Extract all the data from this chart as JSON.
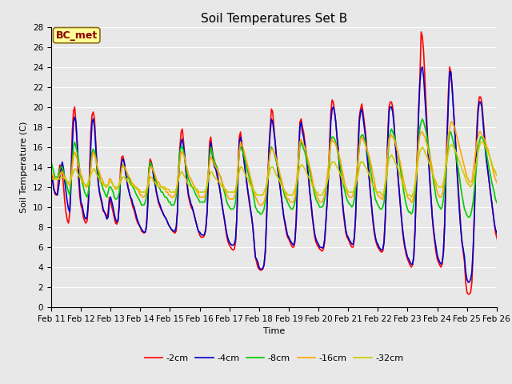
{
  "title": "Soil Temperatures Set B",
  "xlabel": "Time",
  "ylabel": "Soil Temperature (C)",
  "annotation_text": "BC_met",
  "annotation_bg": "#FFFF99",
  "annotation_border": "#8B6914",
  "series_labels": [
    "-2cm",
    "-4cm",
    "-8cm",
    "-16cm",
    "-32cm"
  ],
  "series_colors": [
    "#FF0000",
    "#0000CC",
    "#00CC00",
    "#FFA500",
    "#CCCC00"
  ],
  "ylim": [
    0,
    28
  ],
  "background_color": "#E8E8E8",
  "plot_bg": "#E8E8E8",
  "x_tick_labels": [
    "Feb 11",
    "Feb 12",
    "Feb 13",
    "Feb 14",
    "Feb 15",
    "Feb 16",
    "Feb 17",
    "Feb 18",
    "Feb 19",
    "Feb 20",
    "Feb 21",
    "Feb 22",
    "Feb 23",
    "Feb 24",
    "Feb 25",
    "Feb 26"
  ],
  "title_fontsize": 11,
  "axis_label_fontsize": 8,
  "tick_fontsize": 7.5,
  "legend_fontsize": 8,
  "line_width": 1.2,
  "data_2cm": [
    13.2,
    13.0,
    12.0,
    11.3,
    11.2,
    11.3,
    13.3,
    14.2,
    14.1,
    13.5,
    12.0,
    10.5,
    9.4,
    8.7,
    8.4,
    9.4,
    13.5,
    17.5,
    19.6,
    20.0,
    18.3,
    16.0,
    13.0,
    11.2,
    10.2,
    9.8,
    9.0,
    8.6,
    8.4,
    8.6,
    10.2,
    13.5,
    17.5,
    19.2,
    19.5,
    18.8,
    16.5,
    14.0,
    12.5,
    11.5,
    10.8,
    10.3,
    9.6,
    9.5,
    9.3,
    8.9,
    9.5,
    11.0,
    10.5,
    10.0,
    9.5,
    8.9,
    8.4,
    8.3,
    8.6,
    10.6,
    13.8,
    15.0,
    15.1,
    14.5,
    13.7,
    12.8,
    12.0,
    11.5,
    11.0,
    10.5,
    10.0,
    9.7,
    9.2,
    8.7,
    8.4,
    8.2,
    8.0,
    7.6,
    7.5,
    7.4,
    7.5,
    8.2,
    10.5,
    13.8,
    14.8,
    14.5,
    13.8,
    13.0,
    12.5,
    11.5,
    10.8,
    10.3,
    10.0,
    9.7,
    9.5,
    9.2,
    9.0,
    8.8,
    8.5,
    8.2,
    8.0,
    7.8,
    7.6,
    7.5,
    7.4,
    7.6,
    9.5,
    13.5,
    16.0,
    17.5,
    17.8,
    16.5,
    15.0,
    13.5,
    12.0,
    11.0,
    10.5,
    10.0,
    9.8,
    9.5,
    9.0,
    8.5,
    8.0,
    7.6,
    7.2,
    7.0,
    7.0,
    7.0,
    7.2,
    8.0,
    9.5,
    13.0,
    16.5,
    17.0,
    15.8,
    15.0,
    14.5,
    14.2,
    13.5,
    12.8,
    12.0,
    11.2,
    10.3,
    9.5,
    8.7,
    7.8,
    7.0,
    6.5,
    6.2,
    6.0,
    5.8,
    5.7,
    5.8,
    6.5,
    9.0,
    13.5,
    17.0,
    17.5,
    16.5,
    15.5,
    14.5,
    13.5,
    12.5,
    11.5,
    10.5,
    9.8,
    9.0,
    8.0,
    6.5,
    5.0,
    4.5,
    4.0,
    3.8,
    3.7,
    3.7,
    3.8,
    4.2,
    5.5,
    8.5,
    12.5,
    16.0,
    18.0,
    19.8,
    19.5,
    18.0,
    16.5,
    15.0,
    14.0,
    13.0,
    12.0,
    11.0,
    10.0,
    9.0,
    8.2,
    7.5,
    7.0,
    6.8,
    6.5,
    6.2,
    6.0,
    6.0,
    6.5,
    8.8,
    12.5,
    15.5,
    18.5,
    18.8,
    18.0,
    17.5,
    16.5,
    15.5,
    14.0,
    12.8,
    11.5,
    10.2,
    9.0,
    8.0,
    7.0,
    6.5,
    6.2,
    6.0,
    5.8,
    5.7,
    5.6,
    5.8,
    6.5,
    8.5,
    10.5,
    13.0,
    16.5,
    19.5,
    20.7,
    20.5,
    19.5,
    18.5,
    17.0,
    15.5,
    14.0,
    12.5,
    11.0,
    9.5,
    8.5,
    7.5,
    7.0,
    6.8,
    6.5,
    6.2,
    6.0,
    6.0,
    6.8,
    9.0,
    12.5,
    16.0,
    19.0,
    19.8,
    20.3,
    19.5,
    18.5,
    17.5,
    16.0,
    14.5,
    13.0,
    11.5,
    10.0,
    8.5,
    7.5,
    6.8,
    6.3,
    6.0,
    5.8,
    5.6,
    5.5,
    5.6,
    6.5,
    9.0,
    13.0,
    17.0,
    20.0,
    20.5,
    20.5,
    20.0,
    18.5,
    16.5,
    15.0,
    13.5,
    12.0,
    10.5,
    9.0,
    7.5,
    6.5,
    5.8,
    5.2,
    4.8,
    4.5,
    4.2,
    4.0,
    4.2,
    5.0,
    7.5,
    11.5,
    16.0,
    20.0,
    23.0,
    27.5,
    27.0,
    25.5,
    22.8,
    20.0,
    17.5,
    15.0,
    13.0,
    11.0,
    9.0,
    7.5,
    6.5,
    5.5,
    4.8,
    4.5,
    4.2,
    4.0,
    4.3,
    5.5,
    8.5,
    13.5,
    17.5,
    21.5,
    24.0,
    23.5,
    22.0,
    20.0,
    18.0,
    16.0,
    14.0,
    12.0,
    10.0,
    8.0,
    6.5,
    5.5,
    4.5,
    2.5,
    1.5,
    1.3,
    1.3,
    1.5,
    2.5,
    5.5,
    9.5,
    14.5,
    18.0,
    20.0,
    21.0,
    21.0,
    20.5,
    19.0,
    17.5,
    16.0,
    14.5,
    13.5,
    12.5,
    11.5,
    10.5,
    9.5,
    8.5,
    7.5,
    7.0,
    6.5,
    5.5,
    5.0,
    5.0,
    5.5,
    7.5
  ],
  "data_4cm": [
    13.0,
    12.8,
    11.8,
    11.5,
    11.3,
    11.2,
    12.0,
    13.0,
    14.0,
    14.5,
    13.8,
    12.5,
    11.5,
    10.5,
    9.8,
    9.5,
    12.0,
    16.0,
    18.5,
    19.0,
    18.5,
    16.5,
    14.0,
    12.0,
    10.5,
    10.2,
    9.5,
    9.0,
    8.8,
    9.0,
    10.5,
    13.0,
    16.0,
    18.5,
    18.8,
    18.0,
    16.0,
    14.0,
    12.5,
    11.5,
    11.0,
    10.5,
    9.8,
    9.5,
    9.2,
    8.8,
    9.0,
    10.5,
    11.0,
    10.5,
    10.0,
    9.3,
    8.8,
    8.5,
    8.7,
    10.0,
    13.0,
    14.5,
    14.8,
    14.5,
    13.5,
    12.8,
    12.0,
    11.5,
    11.0,
    10.8,
    10.3,
    10.0,
    9.5,
    9.0,
    8.6,
    8.3,
    8.0,
    7.8,
    7.6,
    7.5,
    7.5,
    8.0,
    10.0,
    13.5,
    14.5,
    14.2,
    13.8,
    12.8,
    12.3,
    11.5,
    11.0,
    10.5,
    10.2,
    9.8,
    9.5,
    9.2,
    9.0,
    8.8,
    8.5,
    8.2,
    8.0,
    7.8,
    7.7,
    7.6,
    7.6,
    8.0,
    9.5,
    13.0,
    15.5,
    16.5,
    16.8,
    16.0,
    15.0,
    13.5,
    12.2,
    11.2,
    10.8,
    10.3,
    10.0,
    9.5,
    9.0,
    8.5,
    8.0,
    7.6,
    7.5,
    7.3,
    7.2,
    7.2,
    7.3,
    7.8,
    9.5,
    12.5,
    15.5,
    16.5,
    15.5,
    14.5,
    14.0,
    13.8,
    13.2,
    12.5,
    12.0,
    11.2,
    10.3,
    9.5,
    8.8,
    8.0,
    7.3,
    6.8,
    6.5,
    6.3,
    6.2,
    6.2,
    6.3,
    6.8,
    8.8,
    13.0,
    16.5,
    17.0,
    16.2,
    15.5,
    14.5,
    13.5,
    12.5,
    11.5,
    10.8,
    9.8,
    9.0,
    8.0,
    6.5,
    5.0,
    4.8,
    4.5,
    4.0,
    3.8,
    3.8,
    3.9,
    4.2,
    5.5,
    8.5,
    12.0,
    15.5,
    17.5,
    18.8,
    18.5,
    17.5,
    16.5,
    15.0,
    13.8,
    13.0,
    12.0,
    11.0,
    10.0,
    9.0,
    8.5,
    7.8,
    7.2,
    7.0,
    6.7,
    6.5,
    6.3,
    6.2,
    6.7,
    8.5,
    12.0,
    15.0,
    18.0,
    18.5,
    17.5,
    17.0,
    16.2,
    15.5,
    14.0,
    13.0,
    11.5,
    10.5,
    9.2,
    8.2,
    7.3,
    6.8,
    6.5,
    6.3,
    6.0,
    6.0,
    5.9,
    6.0,
    6.8,
    8.5,
    10.5,
    12.8,
    15.5,
    18.5,
    19.8,
    20.0,
    19.5,
    18.5,
    17.0,
    15.8,
    14.0,
    12.8,
    11.2,
    9.8,
    8.8,
    7.8,
    7.2,
    7.0,
    6.7,
    6.5,
    6.3,
    6.3,
    7.0,
    9.0,
    12.5,
    15.5,
    18.5,
    19.5,
    19.8,
    19.0,
    18.0,
    17.0,
    15.5,
    14.2,
    12.8,
    11.5,
    10.0,
    8.8,
    7.8,
    7.0,
    6.5,
    6.3,
    6.0,
    5.8,
    5.7,
    5.8,
    6.5,
    8.8,
    12.5,
    16.5,
    19.5,
    20.0,
    20.0,
    19.5,
    18.3,
    16.5,
    15.0,
    13.5,
    12.0,
    10.5,
    9.0,
    7.8,
    6.8,
    6.0,
    5.5,
    5.0,
    4.8,
    4.5,
    4.3,
    4.3,
    5.0,
    7.5,
    11.5,
    15.5,
    19.5,
    22.5,
    23.8,
    24.0,
    23.0,
    21.0,
    19.0,
    16.8,
    14.5,
    12.5,
    10.8,
    9.0,
    7.8,
    6.8,
    6.0,
    5.2,
    4.8,
    4.5,
    4.3,
    4.5,
    5.5,
    8.2,
    13.0,
    17.0,
    20.5,
    23.5,
    23.5,
    22.0,
    20.0,
    18.0,
    16.0,
    13.5,
    11.5,
    9.5,
    7.8,
    6.5,
    5.8,
    5.0,
    3.5,
    2.8,
    2.5,
    2.5,
    2.8,
    3.5,
    5.8,
    9.0,
    13.5,
    17.0,
    19.5,
    20.5,
    20.5,
    20.0,
    18.5,
    17.0,
    15.5,
    14.5,
    13.5,
    12.5,
    11.5,
    10.5,
    9.5,
    8.5,
    7.8,
    7.5,
    7.0,
    6.0,
    5.5,
    5.5,
    5.8,
    7.5
  ],
  "data_8cm": [
    14.5,
    14.0,
    13.5,
    13.0,
    13.0,
    13.0,
    13.2,
    13.8,
    14.0,
    14.0,
    13.5,
    13.0,
    12.5,
    12.0,
    11.5,
    11.2,
    12.5,
    14.5,
    16.0,
    16.5,
    16.0,
    15.5,
    14.8,
    13.8,
    13.0,
    12.5,
    12.0,
    11.5,
    11.2,
    11.0,
    11.5,
    12.5,
    14.0,
    15.5,
    15.8,
    15.5,
    15.0,
    14.0,
    13.5,
    13.0,
    12.5,
    12.2,
    11.8,
    11.5,
    11.2,
    11.0,
    11.5,
    12.0,
    12.0,
    11.8,
    11.5,
    11.0,
    10.8,
    10.8,
    11.0,
    11.5,
    13.0,
    14.0,
    14.2,
    14.0,
    13.8,
    13.5,
    13.0,
    12.8,
    12.5,
    12.2,
    12.0,
    11.8,
    11.5,
    11.2,
    11.0,
    10.8,
    10.5,
    10.2,
    10.2,
    10.2,
    10.5,
    11.0,
    12.0,
    13.8,
    14.5,
    14.2,
    13.8,
    13.5,
    13.0,
    12.5,
    12.2,
    12.0,
    11.8,
    11.5,
    11.5,
    11.2,
    11.0,
    11.0,
    10.8,
    10.5,
    10.5,
    10.2,
    10.2,
    10.2,
    10.5,
    11.0,
    12.0,
    14.0,
    15.5,
    16.0,
    16.0,
    15.5,
    14.8,
    14.0,
    13.2,
    12.8,
    12.5,
    12.2,
    12.0,
    11.8,
    11.5,
    11.2,
    11.0,
    10.8,
    10.5,
    10.5,
    10.5,
    10.5,
    10.5,
    11.0,
    12.0,
    13.5,
    15.0,
    16.0,
    15.5,
    15.0,
    14.5,
    14.2,
    14.0,
    13.5,
    13.2,
    13.0,
    12.5,
    12.0,
    11.5,
    11.0,
    10.5,
    10.2,
    10.0,
    9.8,
    9.8,
    9.8,
    10.0,
    10.5,
    12.0,
    13.8,
    15.5,
    16.0,
    15.8,
    15.5,
    15.0,
    14.5,
    14.0,
    13.5,
    13.0,
    12.5,
    12.0,
    11.5,
    10.8,
    10.0,
    9.8,
    9.5,
    9.5,
    9.3,
    9.3,
    9.5,
    9.8,
    10.5,
    11.5,
    13.0,
    14.5,
    15.5,
    16.0,
    15.8,
    15.5,
    15.0,
    14.5,
    14.0,
    13.5,
    13.0,
    12.5,
    12.0,
    11.5,
    11.0,
    10.8,
    10.5,
    10.2,
    10.0,
    9.8,
    9.8,
    10.0,
    10.5,
    11.5,
    13.0,
    14.5,
    16.0,
    16.5,
    16.2,
    15.8,
    15.5,
    15.0,
    14.5,
    14.0,
    13.5,
    13.0,
    12.3,
    11.8,
    11.2,
    10.8,
    10.5,
    10.3,
    10.0,
    10.0,
    10.0,
    10.2,
    10.8,
    11.5,
    12.5,
    13.5,
    15.0,
    16.5,
    17.0,
    17.0,
    16.8,
    16.5,
    15.8,
    15.2,
    14.5,
    13.8,
    13.0,
    12.3,
    11.8,
    11.2,
    10.8,
    10.5,
    10.3,
    10.2,
    10.0,
    10.2,
    10.8,
    11.8,
    13.0,
    14.5,
    16.0,
    17.0,
    17.2,
    17.2,
    16.8,
    16.5,
    15.8,
    15.2,
    14.5,
    13.8,
    13.0,
    12.3,
    11.5,
    10.8,
    10.5,
    10.2,
    10.0,
    9.8,
    9.8,
    10.0,
    10.5,
    11.8,
    13.0,
    14.8,
    16.5,
    17.5,
    17.8,
    17.5,
    17.2,
    16.8,
    16.0,
    15.5,
    14.8,
    14.0,
    13.2,
    12.3,
    11.5,
    10.8,
    10.2,
    9.8,
    9.5,
    9.5,
    9.3,
    9.5,
    10.2,
    11.5,
    13.0,
    14.8,
    16.5,
    18.0,
    18.5,
    18.8,
    18.5,
    18.0,
    17.5,
    16.8,
    16.0,
    15.2,
    14.3,
    13.5,
    12.5,
    11.8,
    11.0,
    10.5,
    10.2,
    10.0,
    9.8,
    10.0,
    10.8,
    12.0,
    13.5,
    15.0,
    16.5,
    17.5,
    17.5,
    17.0,
    16.5,
    16.0,
    15.2,
    14.5,
    13.8,
    13.0,
    12.0,
    11.2,
    10.5,
    9.8,
    9.5,
    9.2,
    9.0,
    9.0,
    9.2,
    9.8,
    10.5,
    11.8,
    13.2,
    14.5,
    15.8,
    16.5,
    17.0,
    17.0,
    16.8,
    16.5,
    15.8,
    15.2,
    14.5,
    13.8,
    13.2,
    12.5,
    12.0,
    11.5,
    10.8,
    10.5,
    10.2,
    10.0,
    9.8,
    10.0,
    10.5,
    11.8
  ],
  "data_16cm": [
    13.5,
    13.2,
    13.0,
    12.8,
    12.8,
    12.8,
    13.0,
    13.2,
    13.5,
    13.5,
    13.2,
    13.0,
    12.8,
    12.5,
    12.3,
    12.2,
    12.8,
    14.0,
    15.0,
    15.5,
    15.2,
    14.8,
    14.2,
    13.8,
    13.2,
    13.0,
    12.5,
    12.3,
    12.0,
    12.0,
    12.2,
    12.8,
    14.0,
    15.0,
    15.5,
    15.2,
    14.8,
    14.2,
    13.8,
    13.5,
    13.0,
    12.8,
    12.5,
    12.2,
    12.0,
    12.0,
    12.2,
    12.8,
    12.8,
    12.5,
    12.2,
    12.0,
    11.8,
    11.8,
    12.0,
    12.3,
    13.0,
    13.8,
    14.2,
    14.0,
    13.8,
    13.5,
    13.2,
    13.0,
    12.8,
    12.5,
    12.3,
    12.2,
    12.0,
    11.8,
    11.8,
    11.5,
    11.2,
    11.2,
    11.0,
    11.0,
    11.2,
    11.5,
    12.2,
    13.2,
    14.0,
    14.0,
    13.8,
    13.5,
    13.2,
    12.8,
    12.5,
    12.5,
    12.2,
    12.0,
    12.0,
    11.8,
    11.8,
    11.5,
    11.5,
    11.2,
    11.2,
    11.0,
    11.0,
    11.0,
    11.2,
    11.5,
    12.5,
    13.5,
    14.5,
    15.5,
    15.5,
    15.2,
    14.8,
    14.2,
    13.8,
    13.2,
    13.0,
    12.8,
    12.5,
    12.2,
    12.0,
    11.8,
    11.5,
    11.3,
    11.0,
    11.0,
    11.0,
    11.0,
    11.0,
    11.5,
    12.2,
    13.5,
    14.5,
    15.0,
    14.8,
    14.5,
    14.2,
    14.0,
    13.8,
    13.5,
    13.2,
    13.0,
    12.5,
    12.2,
    11.8,
    11.5,
    11.2,
    11.0,
    10.8,
    10.8,
    10.8,
    10.8,
    11.0,
    11.5,
    12.5,
    14.0,
    15.5,
    16.5,
    16.2,
    16.0,
    15.5,
    15.0,
    14.5,
    14.0,
    13.5,
    13.0,
    12.5,
    12.0,
    11.5,
    11.0,
    10.8,
    10.5,
    10.3,
    10.2,
    10.2,
    10.3,
    10.5,
    11.0,
    12.0,
    13.2,
    14.5,
    15.5,
    15.8,
    15.8,
    15.5,
    15.2,
    14.8,
    14.2,
    13.8,
    13.2,
    12.8,
    12.2,
    11.8,
    11.5,
    11.0,
    10.8,
    10.8,
    10.5,
    10.5,
    10.5,
    10.5,
    11.0,
    12.2,
    13.5,
    15.0,
    16.5,
    16.8,
    16.5,
    16.2,
    16.0,
    15.5,
    15.0,
    14.5,
    14.0,
    13.5,
    12.8,
    12.2,
    11.8,
    11.3,
    11.0,
    10.8,
    10.5,
    10.5,
    10.5,
    10.8,
    11.2,
    12.0,
    13.0,
    14.0,
    15.5,
    16.5,
    16.8,
    16.5,
    16.5,
    16.2,
    15.8,
    15.5,
    15.0,
    14.5,
    13.8,
    13.2,
    12.5,
    12.0,
    11.5,
    11.2,
    11.0,
    11.0,
    11.0,
    11.2,
    11.8,
    12.5,
    13.5,
    14.8,
    16.0,
    16.8,
    17.0,
    16.8,
    16.5,
    16.2,
    15.8,
    15.5,
    15.0,
    14.5,
    14.0,
    13.2,
    12.8,
    12.0,
    11.5,
    11.2,
    11.0,
    11.0,
    10.8,
    10.8,
    11.5,
    12.5,
    13.8,
    15.5,
    16.8,
    17.0,
    17.2,
    17.0,
    16.8,
    16.5,
    16.0,
    15.5,
    15.0,
    14.5,
    13.8,
    13.2,
    12.5,
    12.0,
    11.5,
    11.0,
    10.8,
    10.8,
    10.5,
    10.5,
    11.2,
    12.2,
    13.5,
    15.0,
    16.5,
    17.2,
    17.5,
    17.5,
    17.2,
    17.0,
    16.5,
    16.2,
    15.5,
    15.0,
    14.5,
    13.8,
    13.0,
    12.5,
    12.0,
    11.5,
    11.2,
    11.0,
    11.0,
    11.2,
    12.0,
    13.0,
    14.5,
    16.0,
    17.2,
    17.8,
    18.5,
    18.5,
    18.2,
    18.0,
    17.5,
    17.0,
    16.5,
    16.0,
    15.5,
    15.0,
    14.5,
    14.0,
    13.5,
    13.0,
    12.8,
    12.5,
    12.5,
    12.5,
    13.5,
    14.5,
    15.5,
    16.5,
    17.0,
    17.5,
    17.5,
    17.2,
    17.0,
    16.8,
    16.5,
    16.0,
    15.8,
    15.2,
    14.8,
    14.2,
    13.8,
    13.2,
    12.8,
    12.5,
    12.2,
    12.0,
    12.0,
    12.2,
    12.8,
    13.8
  ],
  "data_32cm": [
    13.0,
    12.8,
    12.8,
    12.8,
    12.8,
    12.8,
    12.8,
    12.8,
    13.0,
    13.0,
    13.0,
    12.8,
    12.8,
    12.5,
    12.5,
    12.5,
    12.8,
    13.2,
    13.5,
    13.8,
    13.8,
    13.5,
    13.2,
    13.0,
    12.8,
    12.5,
    12.5,
    12.2,
    12.2,
    12.2,
    12.5,
    12.8,
    13.2,
    13.5,
    13.8,
    13.8,
    13.5,
    13.2,
    13.0,
    12.8,
    12.5,
    12.5,
    12.2,
    12.2,
    12.2,
    12.2,
    12.2,
    12.5,
    12.5,
    12.5,
    12.2,
    12.0,
    12.0,
    12.0,
    12.0,
    12.2,
    12.5,
    12.8,
    13.0,
    13.0,
    12.8,
    12.8,
    12.5,
    12.5,
    12.2,
    12.2,
    12.2,
    12.0,
    12.0,
    12.0,
    11.8,
    11.8,
    11.5,
    11.5,
    11.5,
    11.5,
    11.5,
    11.8,
    12.0,
    12.5,
    13.0,
    13.0,
    12.8,
    12.5,
    12.5,
    12.2,
    12.2,
    12.0,
    12.0,
    12.0,
    12.0,
    12.0,
    12.0,
    11.8,
    11.8,
    11.8,
    11.5,
    11.5,
    11.5,
    11.5,
    11.5,
    11.8,
    12.2,
    12.8,
    13.2,
    13.5,
    13.5,
    13.2,
    13.0,
    12.8,
    12.5,
    12.2,
    12.2,
    12.0,
    12.0,
    12.0,
    12.0,
    11.8,
    11.8,
    11.5,
    11.5,
    11.5,
    11.5,
    11.5,
    11.5,
    11.8,
    12.2,
    12.8,
    13.2,
    13.5,
    13.5,
    13.2,
    13.0,
    12.8,
    12.8,
    12.5,
    12.5,
    12.2,
    12.0,
    12.0,
    11.8,
    11.8,
    11.5,
    11.5,
    11.5,
    11.5,
    11.5,
    11.5,
    11.5,
    11.8,
    12.2,
    13.0,
    13.5,
    14.0,
    14.0,
    13.8,
    13.5,
    13.2,
    13.0,
    12.8,
    12.5,
    12.2,
    12.0,
    11.8,
    11.5,
    11.5,
    11.2,
    11.2,
    11.2,
    11.2,
    11.2,
    11.2,
    11.5,
    11.8,
    12.2,
    12.8,
    13.2,
    13.8,
    14.0,
    14.0,
    13.8,
    13.5,
    13.2,
    13.0,
    12.8,
    12.5,
    12.2,
    12.0,
    11.8,
    11.5,
    11.5,
    11.2,
    11.2,
    11.2,
    11.2,
    11.2,
    11.5,
    11.8,
    12.2,
    12.8,
    13.5,
    14.0,
    14.2,
    14.2,
    14.0,
    13.8,
    13.5,
    13.2,
    13.0,
    12.8,
    12.5,
    12.2,
    12.0,
    11.8,
    11.5,
    11.5,
    11.2,
    11.2,
    11.2,
    11.2,
    11.5,
    11.8,
    12.0,
    12.5,
    13.0,
    13.8,
    14.2,
    14.5,
    14.5,
    14.5,
    14.2,
    14.0,
    13.8,
    13.5,
    13.2,
    12.8,
    12.5,
    12.2,
    12.0,
    11.8,
    11.5,
    11.5,
    11.5,
    11.5,
    11.5,
    11.8,
    12.2,
    12.8,
    13.2,
    14.0,
    14.5,
    14.5,
    14.5,
    14.2,
    14.0,
    13.8,
    13.5,
    13.2,
    13.0,
    12.5,
    12.2,
    12.0,
    11.8,
    11.5,
    11.5,
    11.5,
    11.5,
    11.2,
    11.2,
    11.5,
    12.2,
    13.0,
    14.0,
    14.8,
    15.0,
    15.2,
    15.0,
    14.8,
    14.5,
    14.2,
    14.0,
    13.5,
    13.2,
    12.8,
    12.5,
    12.0,
    11.8,
    11.5,
    11.2,
    11.2,
    11.2,
    11.0,
    11.2,
    11.5,
    12.2,
    13.0,
    14.0,
    15.0,
    15.5,
    15.8,
    16.0,
    15.8,
    15.5,
    15.2,
    15.0,
    14.5,
    14.2,
    13.8,
    13.5,
    13.0,
    12.8,
    12.5,
    12.2,
    12.0,
    12.0,
    12.0,
    12.0,
    12.5,
    13.2,
    14.0,
    14.8,
    15.5,
    16.0,
    16.2,
    16.2,
    16.0,
    15.8,
    15.5,
    15.2,
    14.8,
    14.5,
    14.2,
    13.8,
    13.5,
    13.2,
    12.8,
    12.5,
    12.3,
    12.2,
    12.0,
    12.2,
    12.5,
    13.2,
    14.0,
    14.8,
    15.5,
    16.0,
    16.5,
    16.5,
    16.5,
    16.2,
    16.0,
    15.8,
    15.5,
    15.2,
    14.8,
    14.5,
    14.0,
    13.8,
    13.5,
    13.2,
    13.0,
    12.8,
    12.8,
    12.8,
    13.2,
    13.8
  ]
}
